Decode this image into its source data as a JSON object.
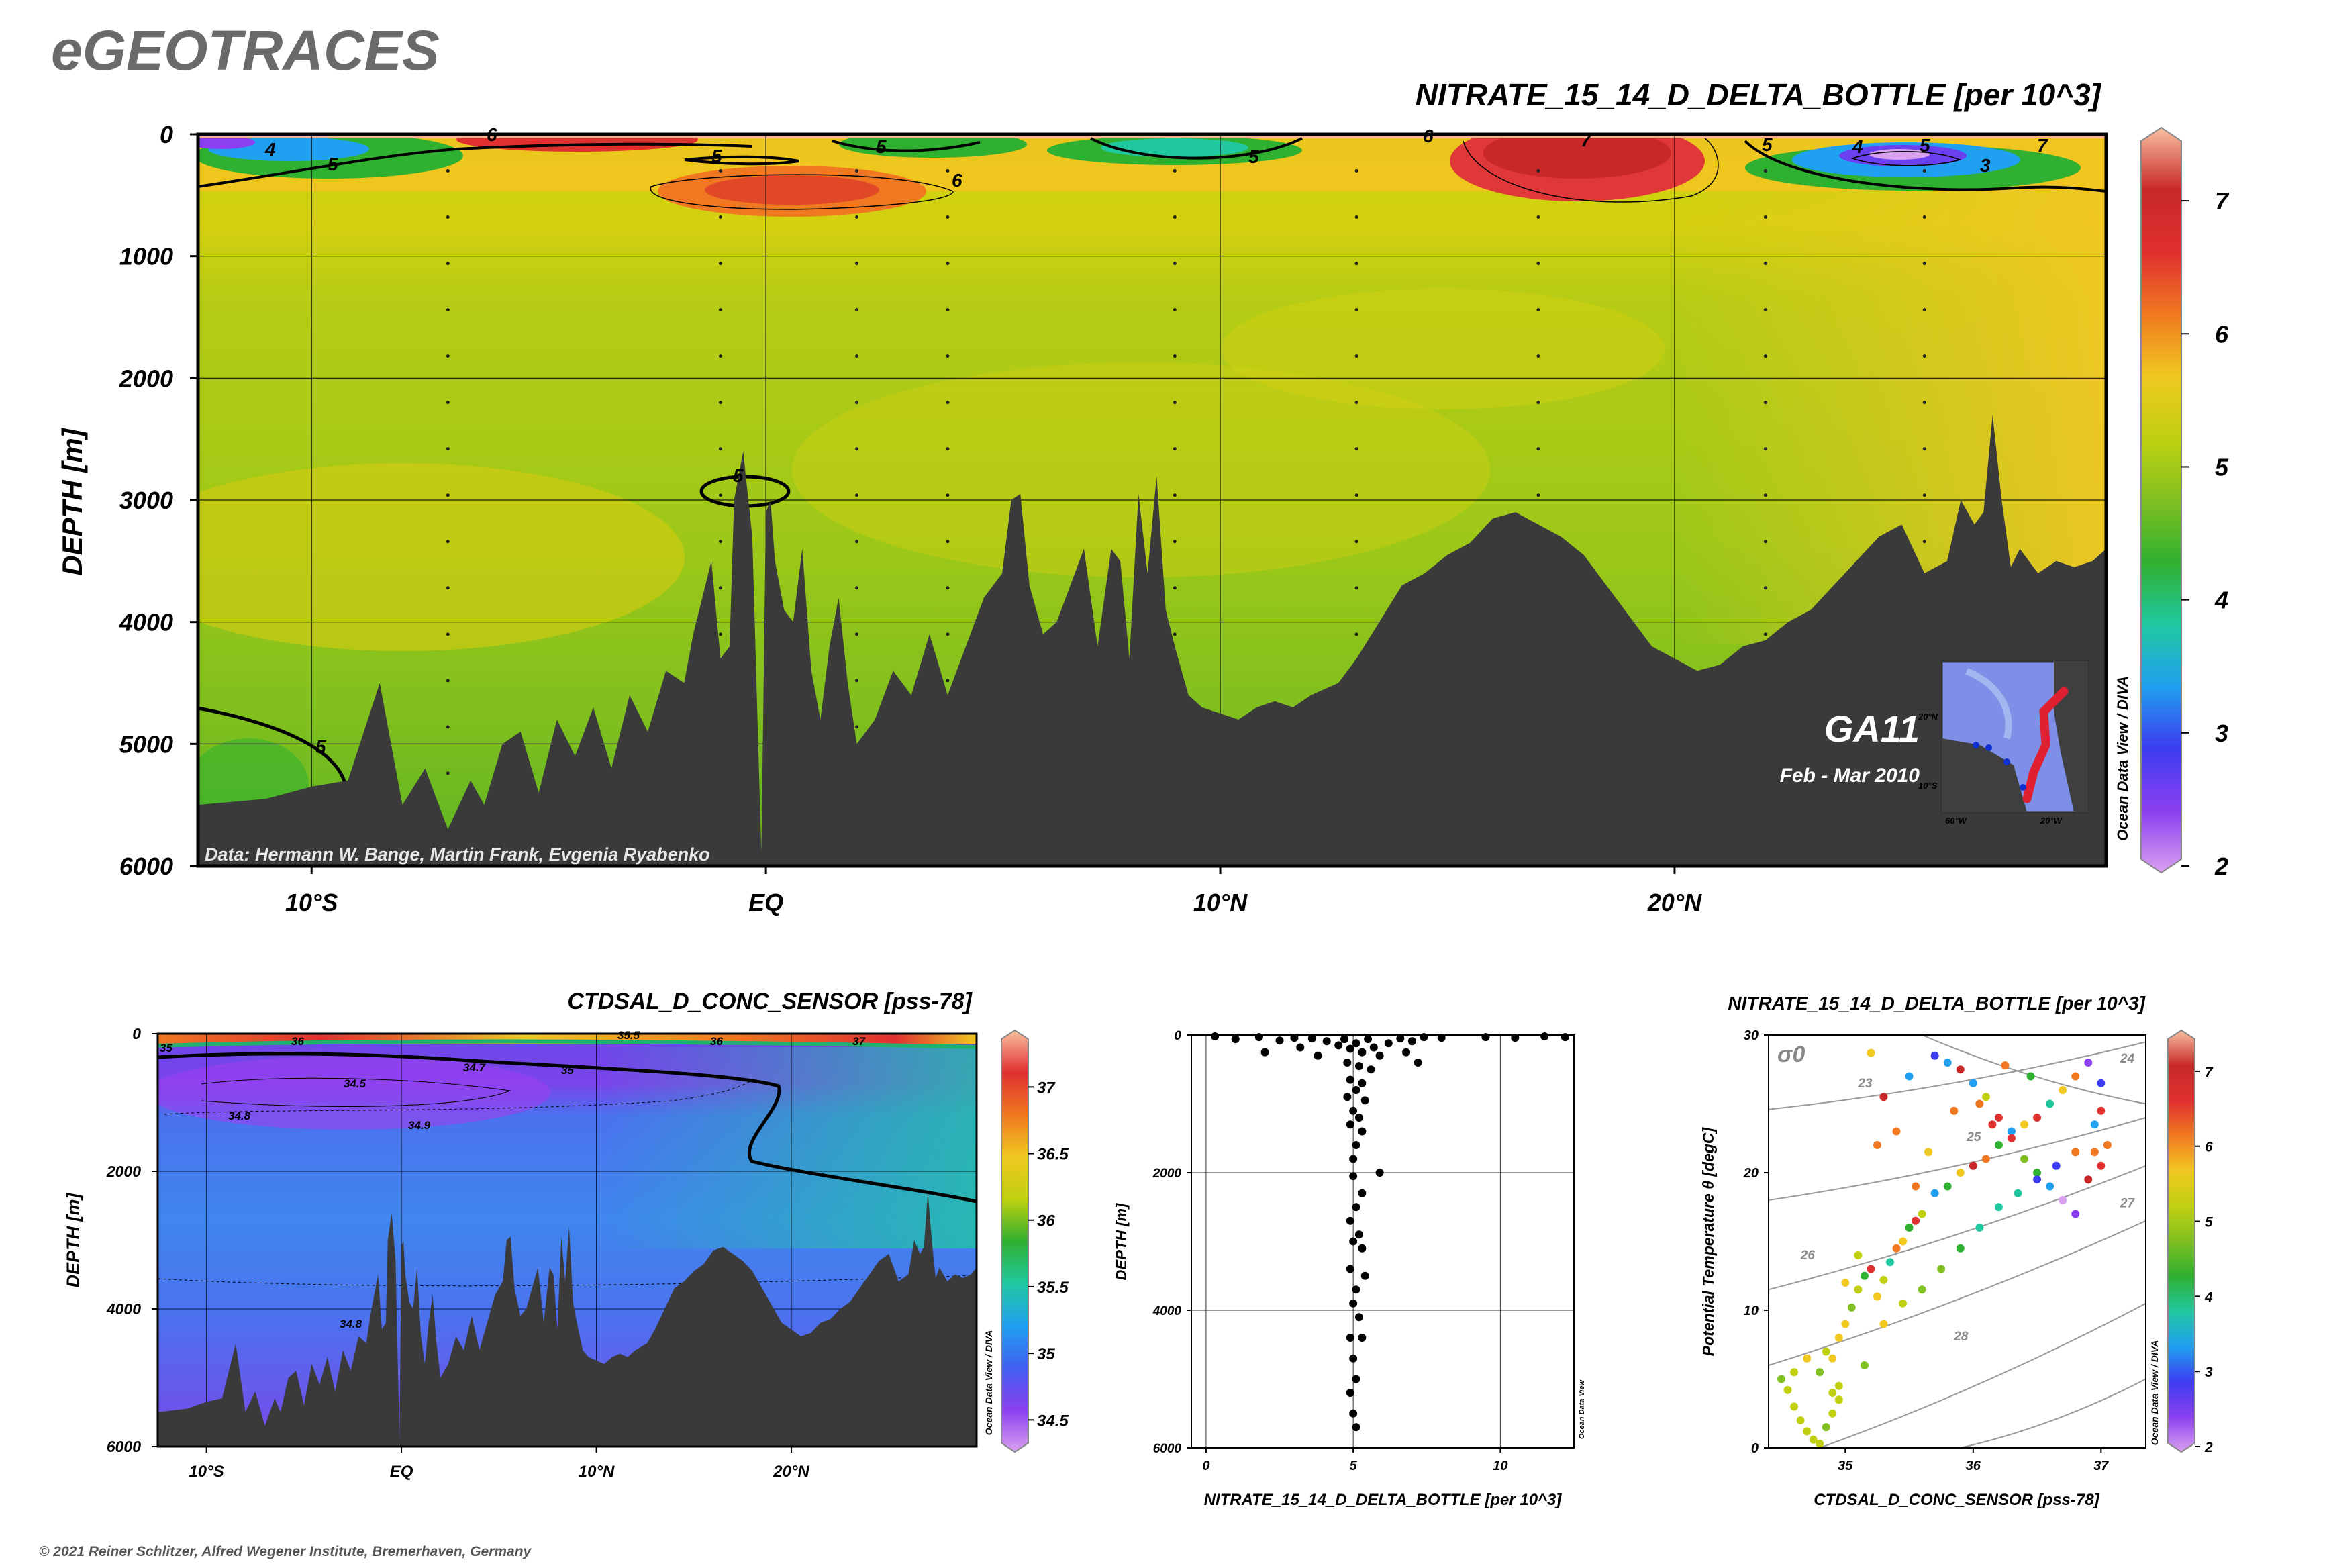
{
  "header": {
    "logo": "eGEOTRACES"
  },
  "footer": {
    "copyright": "© 2021 Reiner Schlitzer, Alfred Wegener Institute, Bremerhaven, Germany"
  },
  "colors": {
    "bathymetry": "#3a3a3a",
    "nitrate_scale": [
      "#d9a0f0",
      "#8a40f0",
      "#3c3cf0",
      "#20a0f0",
      "#20c8a0",
      "#30b030",
      "#80c020",
      "#c0d010",
      "#f0c820",
      "#f07820",
      "#e03030",
      "#c82828",
      "#f8c0a0"
    ],
    "salinity_scale": [
      "#d9a0f0",
      "#8a40f0",
      "#4060f0",
      "#20a0f0",
      "#20c8a0",
      "#30b030",
      "#c0d010",
      "#f0c820",
      "#f07820",
      "#e03030",
      "#f8c0a0"
    ]
  },
  "chart_data": [
    {
      "id": "main",
      "type": "heatmap",
      "title": "NITRATE_15_14_D_DELTA_BOTTLE [per 10^3]",
      "ylabel": "DEPTH [m]",
      "xlabel": "",
      "x_tick_labels": [
        "10°S",
        "EQ",
        "10°N",
        "20°N"
      ],
      "x_ticks": [
        -10,
        0,
        10,
        20
      ],
      "xlim": [
        -12.5,
        29.5
      ],
      "y_ticks": [
        0,
        1000,
        2000,
        3000,
        4000,
        5000,
        6000
      ],
      "ylim": [
        6000,
        0
      ],
      "contour_labels": [
        "4",
        "5",
        "5",
        "5",
        "6",
        "5",
        "6",
        "5",
        "7",
        "5",
        "4",
        "6",
        "7",
        "3",
        "5",
        "5"
      ],
      "colorbar": {
        "ticks": [
          "7",
          "6",
          "5",
          "4",
          "3",
          "2"
        ],
        "min": 2,
        "max": 7.5
      },
      "annotation": "Data: Hermann W. Bange, Martin Frank, Evgenia Ryabenko",
      "section": {
        "name": "GA11",
        "period": "Feb - Mar 2010"
      },
      "inset_labels": [
        "20°N",
        "10°S",
        "60°W",
        "20°W"
      ],
      "watermark": "Ocean Data View / DIVA",
      "bathymetry": {
        "x": [
          -12.5,
          -11,
          -10,
          -9.2,
          -8.5,
          -8,
          -7.5,
          -7,
          -6.5,
          -6.2,
          -5.8,
          -5.4,
          -5,
          -4.6,
          -4.2,
          -3.8,
          -3.4,
          -3,
          -2.6,
          -2.2,
          -1.8,
          -1.6,
          -1.4,
          -1.2,
          -1,
          -0.8,
          -0.7,
          -0.5,
          -0.3,
          -0.1,
          0,
          0.1,
          0.2,
          0.4,
          0.6,
          0.8,
          1,
          1.2,
          1.4,
          1.6,
          1.8,
          2,
          2.4,
          2.8,
          3.2,
          3.6,
          4,
          4.4,
          4.8,
          5.2,
          5.4,
          5.6,
          5.8,
          6.1,
          6.4,
          6.7,
          7,
          7.3,
          7.6,
          7.8,
          8,
          8.2,
          8.4,
          8.6,
          8.8,
          9,
          9.3,
          9.6,
          10,
          10.4,
          10.8,
          11.2,
          11.6,
          12,
          12.6,
          13,
          13.5,
          14,
          14.5,
          15,
          15.5,
          16,
          16.5,
          17,
          17.5,
          18,
          18.5,
          19,
          19.5,
          20,
          20.5,
          21,
          21.5,
          22,
          22.5,
          23,
          23.5,
          24,
          24.5,
          25,
          25.5,
          26,
          26.3,
          26.6,
          26.8,
          27,
          27.2,
          27.4,
          27.6,
          27.8,
          28,
          28.4,
          28.8,
          29.2,
          29.5
        ],
        "y": [
          5500,
          5450,
          5350,
          5300,
          4500,
          5500,
          5200,
          5700,
          5300,
          5500,
          5000,
          4900,
          5400,
          4800,
          5100,
          4700,
          5200,
          4600,
          4900,
          4400,
          4500,
          4100,
          3800,
          3500,
          4300,
          4200,
          3000,
          2600,
          3300,
          5900,
          3100,
          3000,
          3500,
          3900,
          4000,
          3400,
          4400,
          4800,
          4200,
          3800,
          4500,
          5000,
          4800,
          4400,
          4600,
          4100,
          4600,
          4200,
          3800,
          3600,
          3000,
          2950,
          3700,
          4100,
          4000,
          3700,
          3400,
          4200,
          3400,
          3500,
          4300,
          2950,
          3600,
          2800,
          3900,
          4200,
          4600,
          4700,
          4750,
          4800,
          4700,
          4650,
          4700,
          4600,
          4500,
          4300,
          4000,
          3700,
          3600,
          3450,
          3350,
          3150,
          3100,
          3200,
          3300,
          3450,
          3700,
          3950,
          4200,
          4300,
          4400,
          4350,
          4200,
          4150,
          4000,
          3900,
          3700,
          3500,
          3300,
          3200,
          3600,
          3500,
          3000,
          3200,
          3100,
          2300,
          3000,
          3550,
          3400,
          3500,
          3600,
          3500,
          3550,
          3500,
          3400
        ]
      }
    },
    {
      "id": "salinity-section",
      "type": "heatmap",
      "title": "CTDSAL_D_CONC_SENSOR [pss-78]",
      "ylabel": "DEPTH [m]",
      "xlabel": "",
      "x_tick_labels": [
        "10°S",
        "EQ",
        "10°N",
        "20°N"
      ],
      "x_ticks": [
        -10,
        0,
        10,
        20
      ],
      "xlim": [
        -12.5,
        29.5
      ],
      "y_ticks": [
        0,
        2000,
        4000,
        6000
      ],
      "ylim": [
        6000,
        0
      ],
      "contour_labels": [
        "35",
        "36",
        "35.5",
        "36",
        "37",
        "34.5",
        "34.7",
        "35",
        "34.8",
        "34.9",
        "34.8"
      ],
      "colorbar": {
        "ticks": [
          "37",
          "36.5",
          "36",
          "35.5",
          "35",
          "34.5"
        ],
        "min": 34.3,
        "max": 37.4
      },
      "watermark": "Ocean Data View / DIVA"
    },
    {
      "id": "profile",
      "type": "scatter",
      "title": "",
      "xlabel": "NITRATE_15_14_D_DELTA_BOTTLE [per 10^3]",
      "ylabel": "DEPTH [m]",
      "x_ticks": [
        0,
        5,
        10
      ],
      "xlim": [
        -0.5,
        12.5
      ],
      "y_ticks": [
        0,
        2000,
        4000,
        6000
      ],
      "ylim": [
        6000,
        0
      ],
      "watermark": "Ocean Data View",
      "points": [
        [
          0.3,
          20
        ],
        [
          1.0,
          60
        ],
        [
          1.8,
          30
        ],
        [
          2.5,
          80
        ],
        [
          3.0,
          40
        ],
        [
          3.6,
          50
        ],
        [
          4.1,
          90
        ],
        [
          4.5,
          150
        ],
        [
          4.7,
          60
        ],
        [
          4.9,
          200
        ],
        [
          5.1,
          120
        ],
        [
          5.3,
          250
        ],
        [
          5.5,
          60
        ],
        [
          5.7,
          180
        ],
        [
          5.9,
          300
        ],
        [
          6.2,
          120
        ],
        [
          6.6,
          50
        ],
        [
          7.0,
          90
        ],
        [
          7.4,
          30
        ],
        [
          8.0,
          40
        ],
        [
          9.5,
          30
        ],
        [
          10.5,
          40
        ],
        [
          11.5,
          20
        ],
        [
          12.2,
          30
        ],
        [
          2.0,
          250
        ],
        [
          3.2,
          180
        ],
        [
          3.8,
          300
        ],
        [
          6.8,
          250
        ],
        [
          7.2,
          400
        ],
        [
          4.8,
          400
        ],
        [
          5.2,
          450
        ],
        [
          5.6,
          500
        ],
        [
          4.9,
          650
        ],
        [
          5.3,
          700
        ],
        [
          5.1,
          800
        ],
        [
          4.8,
          900
        ],
        [
          5.4,
          950
        ],
        [
          5.0,
          1100
        ],
        [
          5.2,
          1200
        ],
        [
          4.9,
          1300
        ],
        [
          5.3,
          1400
        ],
        [
          5.1,
          1600
        ],
        [
          5.0,
          1800
        ],
        [
          5.9,
          2000
        ],
        [
          5.0,
          2050
        ],
        [
          5.3,
          2300
        ],
        [
          5.1,
          2500
        ],
        [
          4.9,
          2700
        ],
        [
          5.2,
          2900
        ],
        [
          5.0,
          3000
        ],
        [
          5.3,
          3100
        ],
        [
          4.9,
          3400
        ],
        [
          5.4,
          3500
        ],
        [
          5.1,
          3700
        ],
        [
          5.0,
          3900
        ],
        [
          5.2,
          4100
        ],
        [
          4.9,
          4400
        ],
        [
          5.3,
          4400
        ],
        [
          5.0,
          4700
        ],
        [
          5.1,
          5000
        ],
        [
          4.9,
          5200
        ],
        [
          5.0,
          5500
        ],
        [
          5.1,
          5700
        ]
      ]
    },
    {
      "id": "ts-plot",
      "type": "scatter",
      "title": "NITRATE_15_14_D_DELTA_BOTTLE [per 10^3]",
      "xlabel": "CTDSAL_D_CONC_SENSOR [pss-78]",
      "ylabel": "Potential Temperature θ [degC]",
      "x_ticks": [
        35,
        36,
        37
      ],
      "xlim": [
        34.4,
        37.35
      ],
      "y_ticks": [
        0,
        10,
        20,
        30
      ],
      "ylim": [
        0,
        30
      ],
      "isopycnal_label": "σ0",
      "isopycnals": [
        "23",
        "24",
        "25",
        "26",
        "27",
        "28"
      ],
      "colorbar": {
        "ticks": [
          "7",
          "6",
          "5",
          "4",
          "3",
          "2"
        ],
        "min": 2,
        "max": 7.5
      },
      "watermark": "Ocean Data View / DIVA",
      "points": [
        [
          34.5,
          5.0,
          4.8
        ],
        [
          34.55,
          4.2,
          5.2
        ],
        [
          34.6,
          3.0,
          5.1
        ],
        [
          34.65,
          2.0,
          5.0
        ],
        [
          34.7,
          1.2,
          5.3
        ],
        [
          34.75,
          0.6,
          5.2
        ],
        [
          34.8,
          0.3,
          5.0
        ],
        [
          34.85,
          1.5,
          4.9
        ],
        [
          34.9,
          2.5,
          5.1
        ],
        [
          34.95,
          3.5,
          5.2
        ],
        [
          34.9,
          4.0,
          5.0
        ],
        [
          34.8,
          5.5,
          4.9
        ],
        [
          34.7,
          6.5,
          5.5
        ],
        [
          34.85,
          7.0,
          5.4
        ],
        [
          34.95,
          8.0,
          5.8
        ],
        [
          35.0,
          9.0,
          5.5
        ],
        [
          35.05,
          10.2,
          4.6
        ],
        [
          35.1,
          11.5,
          5.0
        ],
        [
          35.15,
          12.5,
          4.2
        ],
        [
          35.2,
          13.0,
          6.5
        ],
        [
          35.25,
          11.0,
          5.8
        ],
        [
          35.3,
          12.2,
          5.2
        ],
        [
          35.35,
          13.5,
          4.0
        ],
        [
          35.4,
          14.5,
          6.0
        ],
        [
          35.45,
          15.0,
          5.5
        ],
        [
          35.5,
          16.0,
          4.5
        ],
        [
          35.55,
          16.5,
          6.4
        ],
        [
          35.6,
          17.0,
          5.1
        ],
        [
          35.7,
          18.5,
          3.5
        ],
        [
          35.8,
          19.0,
          4.3
        ],
        [
          35.9,
          20.0,
          5.6
        ],
        [
          36.0,
          20.5,
          7.0
        ],
        [
          36.1,
          21.0,
          6.2
        ],
        [
          36.2,
          22.0,
          4.4
        ],
        [
          36.3,
          23.0,
          3.2
        ],
        [
          36.4,
          23.5,
          5.8
        ],
        [
          36.5,
          24.0,
          6.8
        ],
        [
          36.6,
          25.0,
          3.8
        ],
        [
          36.7,
          26.0,
          5.5
        ],
        [
          36.8,
          27.0,
          6.1
        ],
        [
          36.9,
          28.0,
          2.6
        ],
        [
          37.0,
          26.5,
          3.0
        ],
        [
          37.05,
          22.0,
          6.0
        ],
        [
          37.0,
          20.5,
          6.8
        ],
        [
          36.95,
          21.5,
          5.9
        ],
        [
          36.9,
          19.5,
          7.0
        ],
        [
          36.8,
          17.0,
          2.5
        ],
        [
          36.7,
          18.0,
          2.2
        ],
        [
          36.6,
          19.0,
          3.2
        ],
        [
          36.5,
          20.0,
          4.5
        ],
        [
          36.4,
          21.0,
          4.8
        ],
        [
          36.3,
          22.5,
          6.7
        ],
        [
          36.2,
          24.0,
          6.5
        ],
        [
          36.1,
          25.5,
          5.4
        ],
        [
          36.0,
          26.5,
          3.3
        ],
        [
          35.9,
          27.5,
          6.9
        ],
        [
          35.8,
          28.0,
          3.6
        ],
        [
          35.7,
          28.5,
          3.0
        ],
        [
          35.5,
          27.0,
          3.2
        ],
        [
          35.3,
          25.5,
          7.0
        ],
        [
          35.2,
          28.7,
          5.8
        ],
        [
          35.1,
          14.0,
          5.3
        ],
        [
          35.0,
          12.0,
          5.6
        ],
        [
          34.9,
          6.5,
          5.7
        ],
        [
          34.6,
          5.5,
          5.0
        ],
        [
          34.95,
          4.5,
          5.4
        ],
        [
          35.15,
          6.0,
          4.9
        ],
        [
          35.3,
          9.0,
          5.6
        ],
        [
          35.45,
          10.5,
          5.0
        ],
        [
          35.6,
          11.5,
          4.8
        ],
        [
          35.75,
          13.0,
          4.6
        ],
        [
          35.9,
          14.5,
          4.2
        ],
        [
          36.05,
          16.0,
          4.0
        ],
        [
          36.2,
          17.5,
          3.9
        ],
        [
          36.35,
          18.5,
          3.7
        ],
        [
          36.5,
          19.5,
          2.8
        ],
        [
          36.65,
          20.5,
          3.0
        ],
        [
          36.8,
          21.5,
          6.3
        ],
        [
          36.95,
          23.5,
          3.4
        ],
        [
          37.0,
          24.5,
          6.6
        ],
        [
          35.55,
          19.0,
          6.3
        ],
        [
          35.65,
          21.5,
          5.7
        ],
        [
          35.85,
          24.5,
          6.0
        ],
        [
          36.05,
          25.0,
          6.2
        ],
        [
          36.25,
          27.8,
          6.1
        ],
        [
          36.45,
          27.0,
          4.3
        ],
        [
          35.25,
          22.0,
          6.0
        ],
        [
          35.4,
          23.0,
          5.9
        ],
        [
          36.15,
          23.5,
          6.5
        ]
      ]
    }
  ]
}
